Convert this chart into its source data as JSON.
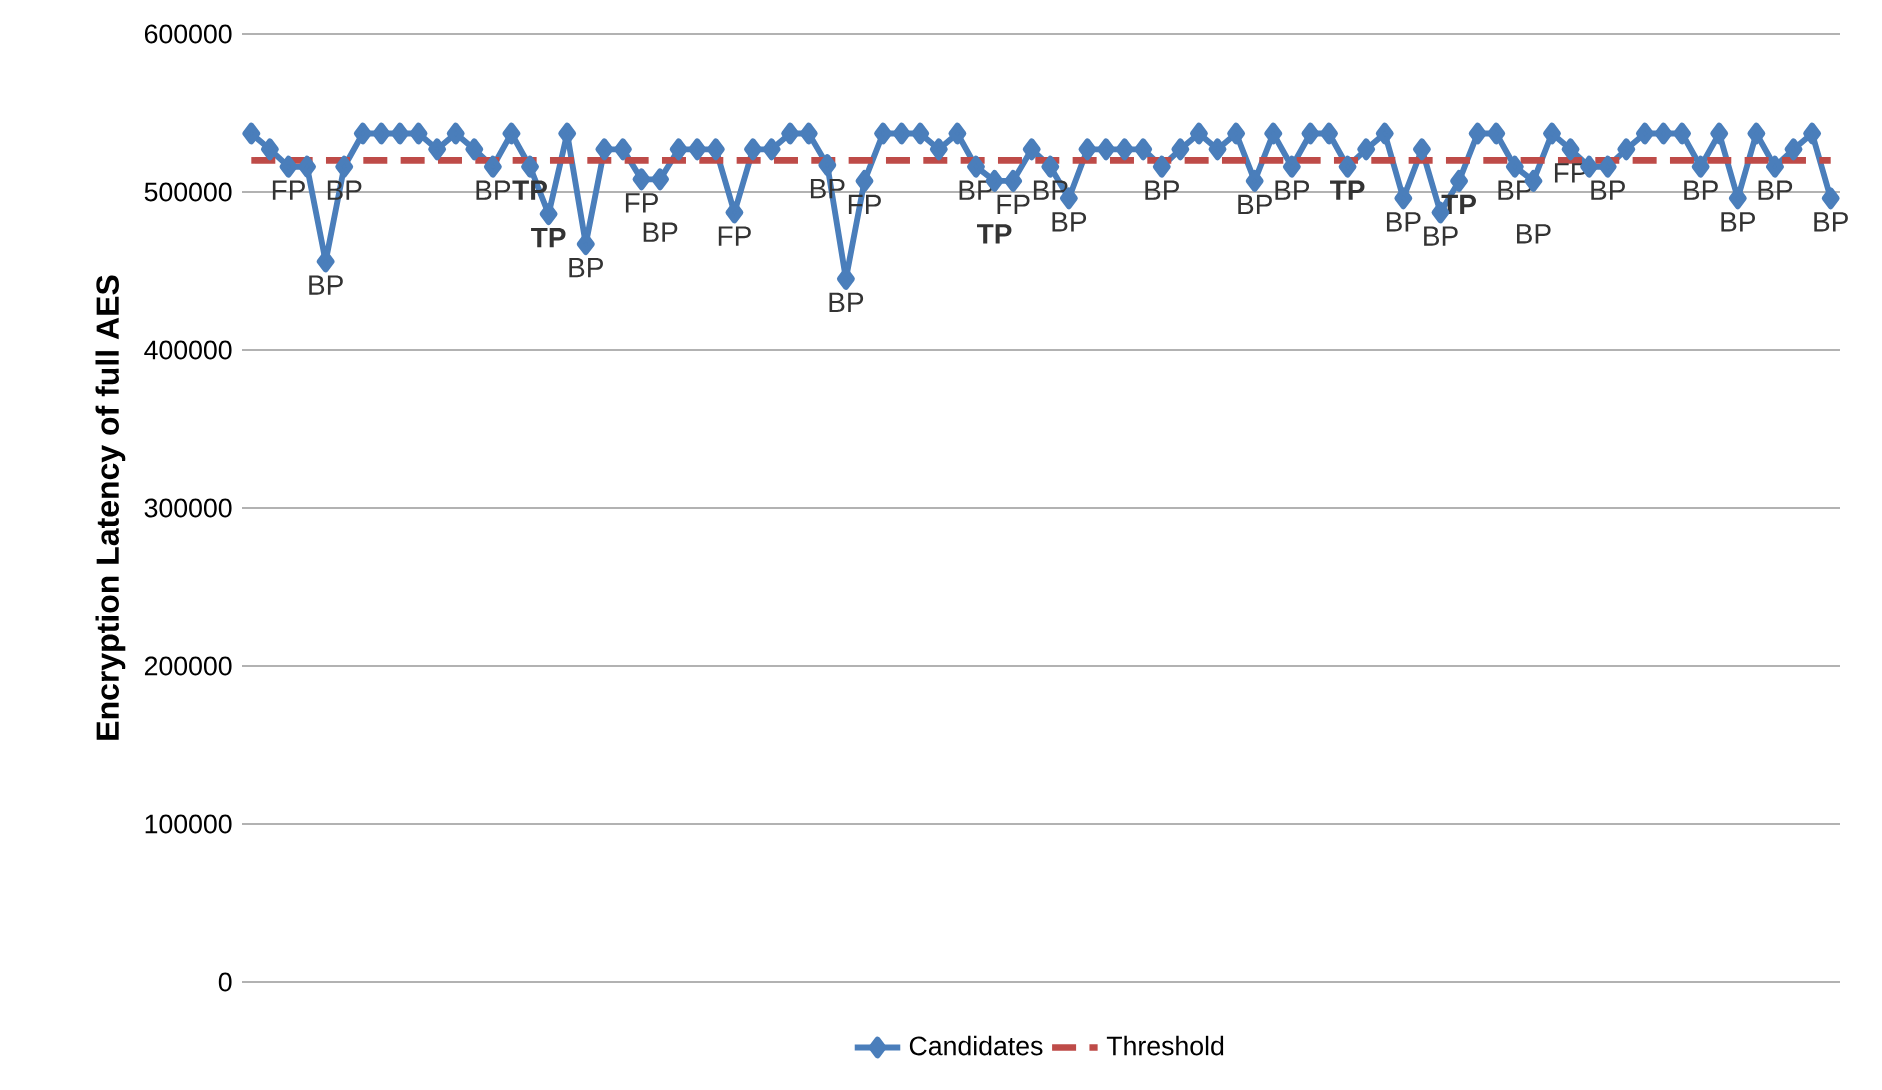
{
  "chart_data": {
    "type": "line",
    "ylabel": "Encryption Latency of full AES",
    "categories": [
      null,
      null,
      null,
      null,
      null,
      null,
      null,
      null,
      null,
      null,
      null,
      null,
      null,
      null,
      null,
      null,
      null,
      null,
      null,
      null,
      null,
      null,
      null,
      null,
      null,
      null,
      null,
      null,
      null,
      null,
      null,
      null,
      null,
      null,
      null,
      null,
      null,
      null,
      null,
      null,
      null,
      null,
      null,
      null,
      null,
      null,
      null,
      null,
      null,
      null,
      null,
      null,
      null,
      null,
      null,
      null,
      null,
      null,
      null,
      null,
      null,
      null,
      null,
      null,
      null,
      null,
      null,
      null,
      null,
      null,
      null,
      null,
      null,
      null,
      null,
      null,
      null,
      null,
      null,
      null,
      null,
      null,
      null,
      null,
      null,
      null
    ],
    "series": [
      {
        "name": "Candidates",
        "color": "#4a7ebb",
        "marker": "diamond",
        "line_style": "solid",
        "values": [
          537000,
          527000,
          516000,
          516000,
          456000,
          516000,
          537000,
          537000,
          537000,
          537000,
          527000,
          537000,
          527000,
          516000,
          537000,
          516000,
          486000,
          537000,
          467000,
          527000,
          527000,
          508000,
          508000,
          527000,
          527000,
          527000,
          487000,
          527000,
          527000,
          537000,
          537000,
          517000,
          445000,
          507000,
          537000,
          537000,
          537000,
          527000,
          537000,
          516000,
          507000,
          507000,
          527000,
          516000,
          496000,
          527000,
          527000,
          527000,
          527000,
          516000,
          527000,
          537000,
          527000,
          537000,
          507000,
          537000,
          516000,
          537000,
          537000,
          516000,
          527000,
          537000,
          496000,
          527000,
          487000,
          507000,
          537000,
          537000,
          516000,
          507000,
          537000,
          527000,
          516000,
          516000,
          527000,
          537000,
          537000,
          537000,
          516000,
          537000,
          496000,
          537000,
          516000,
          527000,
          537000,
          496000
        ],
        "value_labels": [
          null,
          null,
          "FP",
          null,
          "BP",
          "BP",
          null,
          null,
          null,
          null,
          null,
          null,
          null,
          "BP",
          null,
          "**TP**",
          "**TP**",
          null,
          "BP",
          null,
          null,
          "FP",
          "BP",
          null,
          null,
          null,
          "FP",
          null,
          null,
          null,
          null,
          "BP",
          "BP",
          "FP",
          null,
          null,
          null,
          null,
          null,
          "BP",
          "**TP**",
          "FP",
          null,
          "BP",
          "BP",
          null,
          null,
          null,
          null,
          "BP",
          null,
          null,
          null,
          null,
          "BP",
          null,
          "BP",
          null,
          null,
          "**TP**",
          null,
          null,
          "BP",
          null,
          "BP",
          "**TP**",
          null,
          null,
          "BP",
          "BP",
          null,
          "FP",
          null,
          "BP",
          null,
          null,
          null,
          null,
          "BP",
          null,
          "BP",
          null,
          "BP",
          null,
          null,
          "BP"
        ]
      },
      {
        "name": "Threshold",
        "color": "#be4b48",
        "marker": "none",
        "line_style": "dashed",
        "values": [
          520000,
          520000,
          520000,
          520000,
          520000,
          520000,
          520000,
          520000,
          520000,
          520000,
          520000,
          520000,
          520000,
          520000,
          520000,
          520000,
          520000,
          520000,
          520000,
          520000,
          520000,
          520000,
          520000,
          520000,
          520000,
          520000,
          520000,
          520000,
          520000,
          520000,
          520000,
          520000,
          520000,
          520000,
          520000,
          520000,
          520000,
          520000,
          520000,
          520000,
          520000,
          520000,
          520000,
          520000,
          520000,
          520000,
          520000,
          520000,
          520000,
          520000,
          520000,
          520000,
          520000,
          520000,
          520000,
          520000,
          520000,
          520000,
          520000,
          520000,
          520000,
          520000,
          520000,
          520000,
          520000,
          520000,
          520000,
          520000,
          520000,
          520000,
          520000,
          520000,
          520000,
          520000,
          520000,
          520000,
          520000,
          520000,
          520000,
          520000,
          520000,
          520000,
          520000,
          520000,
          520000,
          520000
        ]
      }
    ],
    "ylim": [
      0,
      600000
    ],
    "yticks": [
      0,
      100000,
      200000,
      300000,
      400000,
      500000,
      600000
    ],
    "grid": "y",
    "legend": "bottom"
  }
}
